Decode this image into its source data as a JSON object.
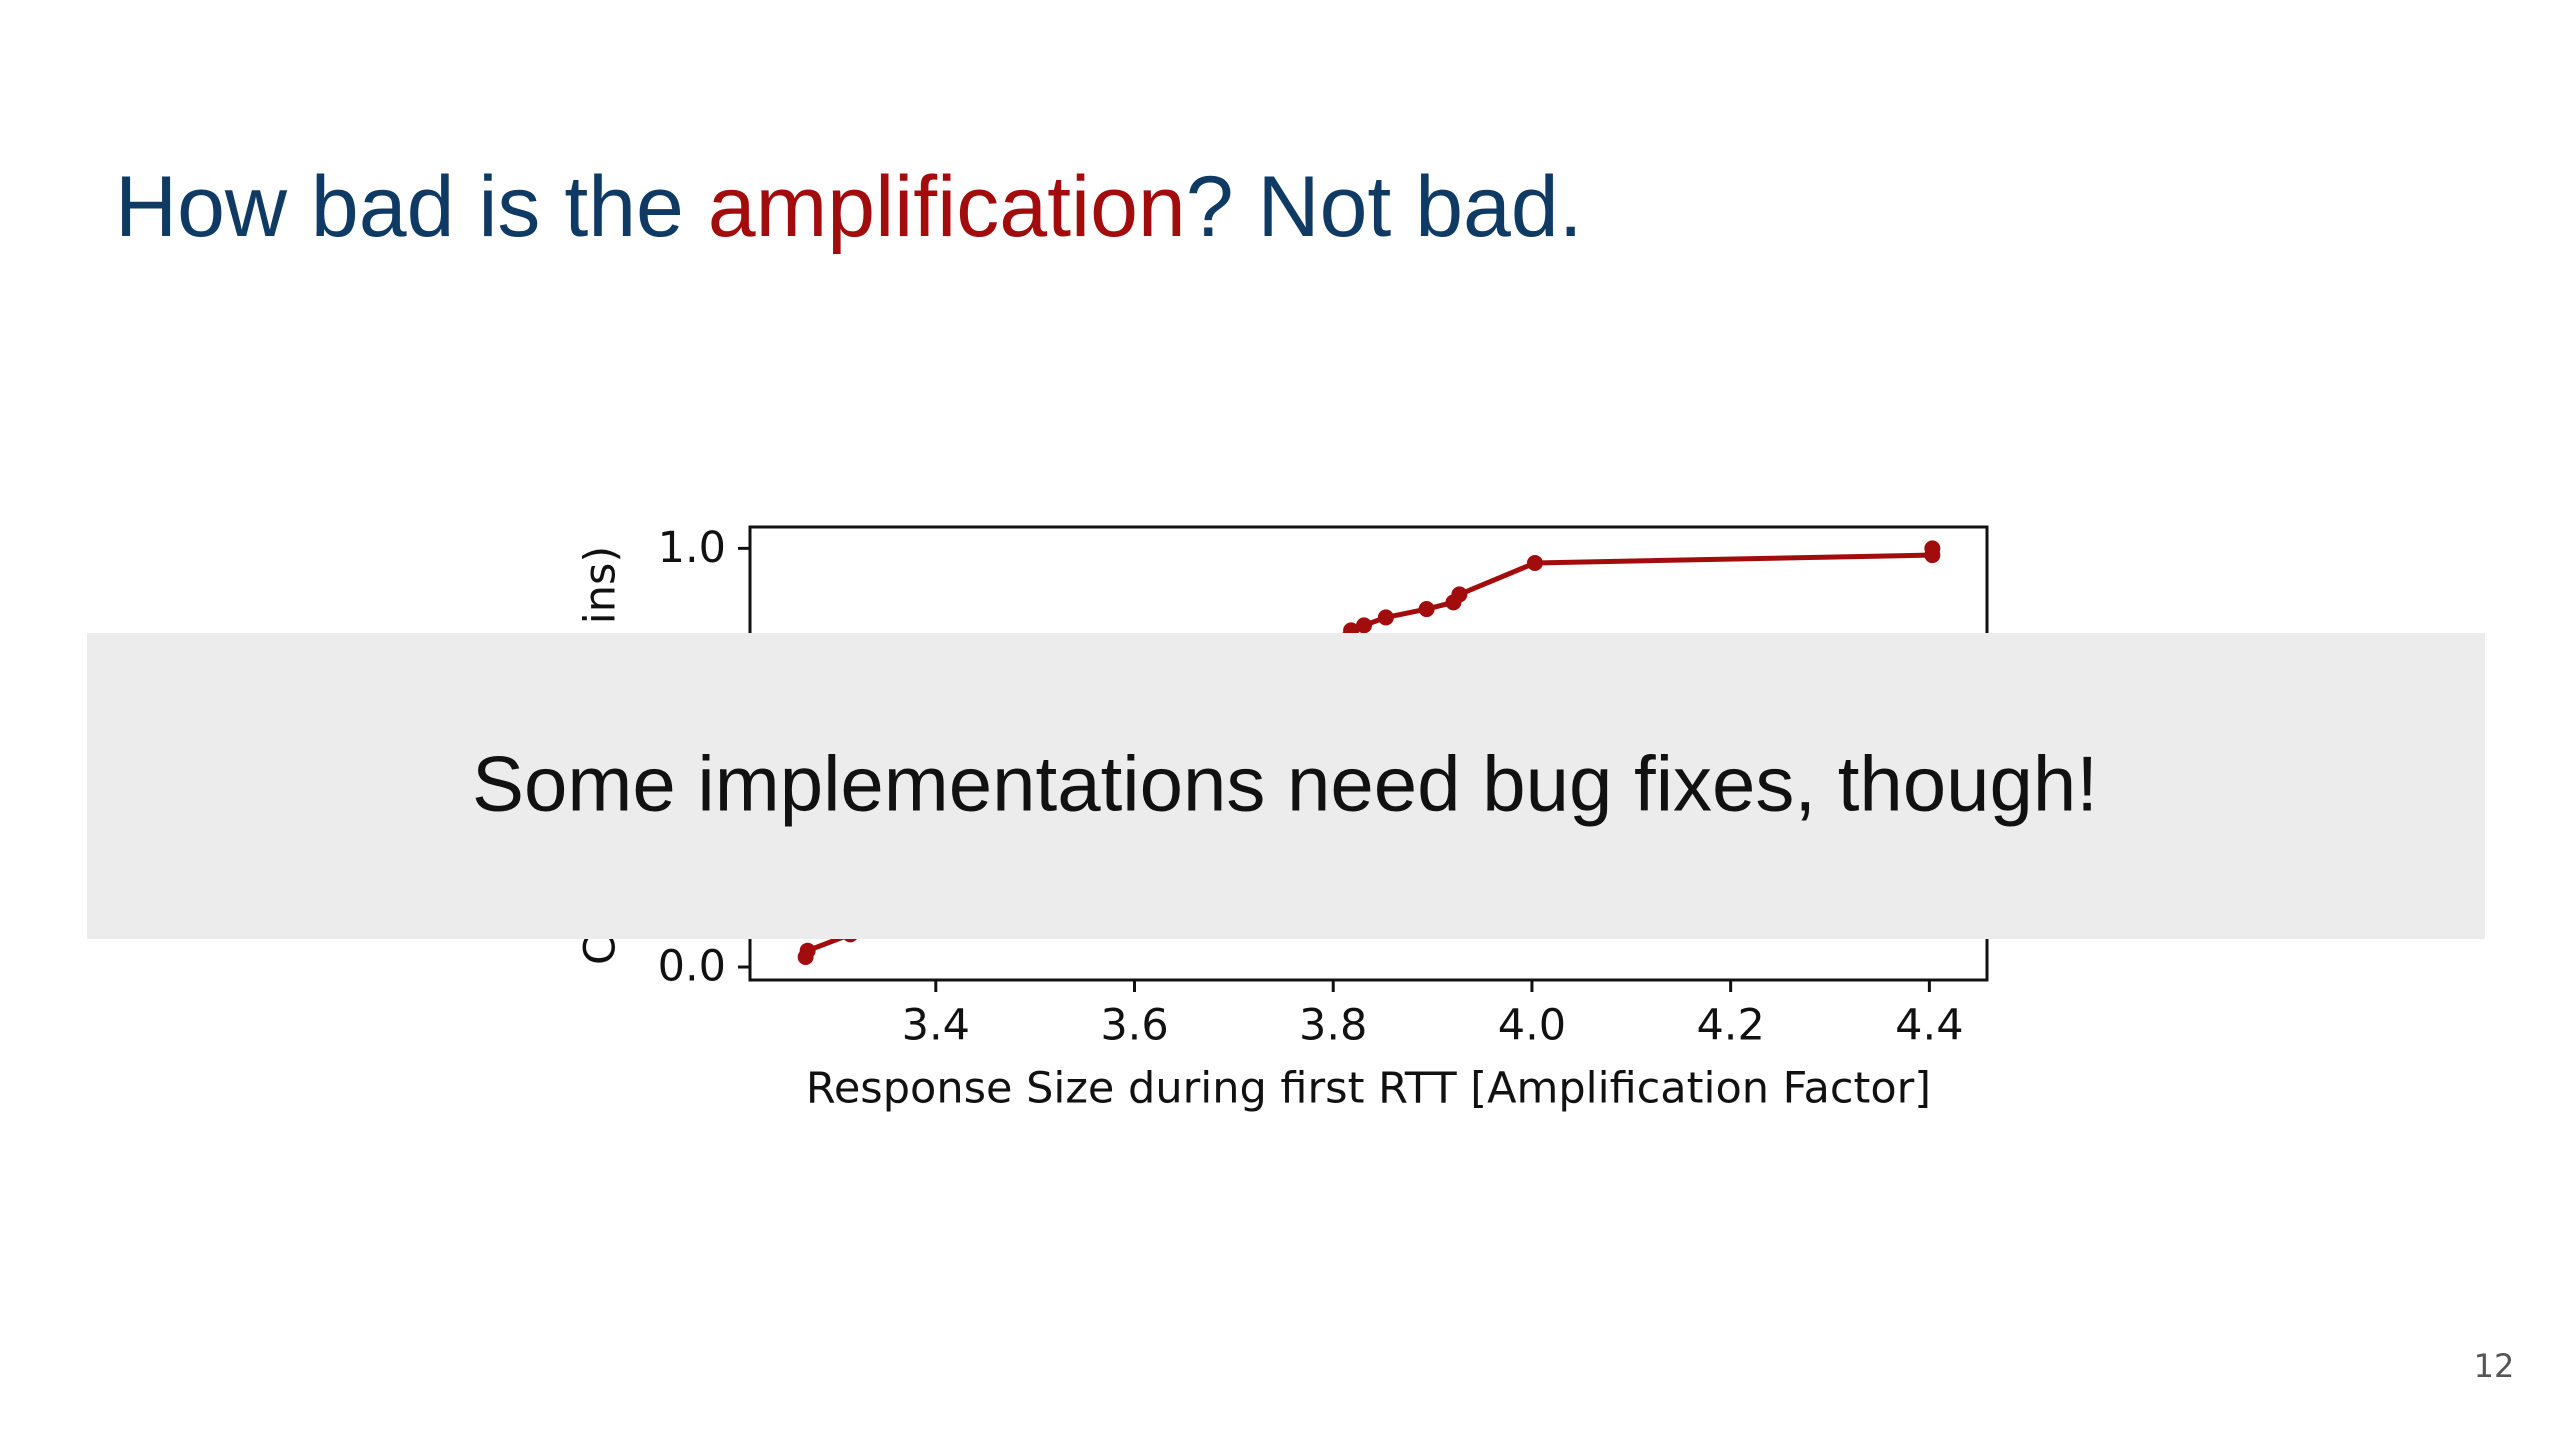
{
  "slide": {
    "title_parts": [
      {
        "text": "How bad is the ",
        "color": "#0f3a64"
      },
      {
        "text": "amplification",
        "color": "#a30c0c"
      },
      {
        "text": "? Not bad.",
        "color": "#0f3a64"
      }
    ],
    "overlay_text": "Some implementations need bug fixes, though!",
    "page_number": "12"
  },
  "chart_data": {
    "type": "line",
    "xlabel": "Response Size during first RTT [Amplification Factor]",
    "ylabel_parts": [
      "C",
      "ins)"
    ],
    "x": [
      3.269,
      3.271,
      3.314,
      3.818,
      3.831,
      3.853,
      3.894,
      3.921,
      3.927,
      4.003,
      4.403,
      4.403
    ],
    "series": [
      {
        "color": "#a30c0c",
        "values": [
          0.024,
          0.039,
          0.078,
          0.804,
          0.816,
          0.835,
          0.855,
          0.871,
          0.89,
          0.965,
          0.984,
          1.0
        ]
      }
    ],
    "xlim": [
      3.213,
      4.458
    ],
    "ylim": [
      -0.031,
      1.051
    ],
    "xticks": [
      3.4,
      3.6,
      3.8,
      {
        "value": 4,
        "label": "4.0"
      },
      4.2,
      4.4
    ],
    "yticks": [
      {
        "value": 0,
        "label": "0.0"
      },
      {
        "value": 1,
        "label": "1.0"
      }
    ]
  }
}
